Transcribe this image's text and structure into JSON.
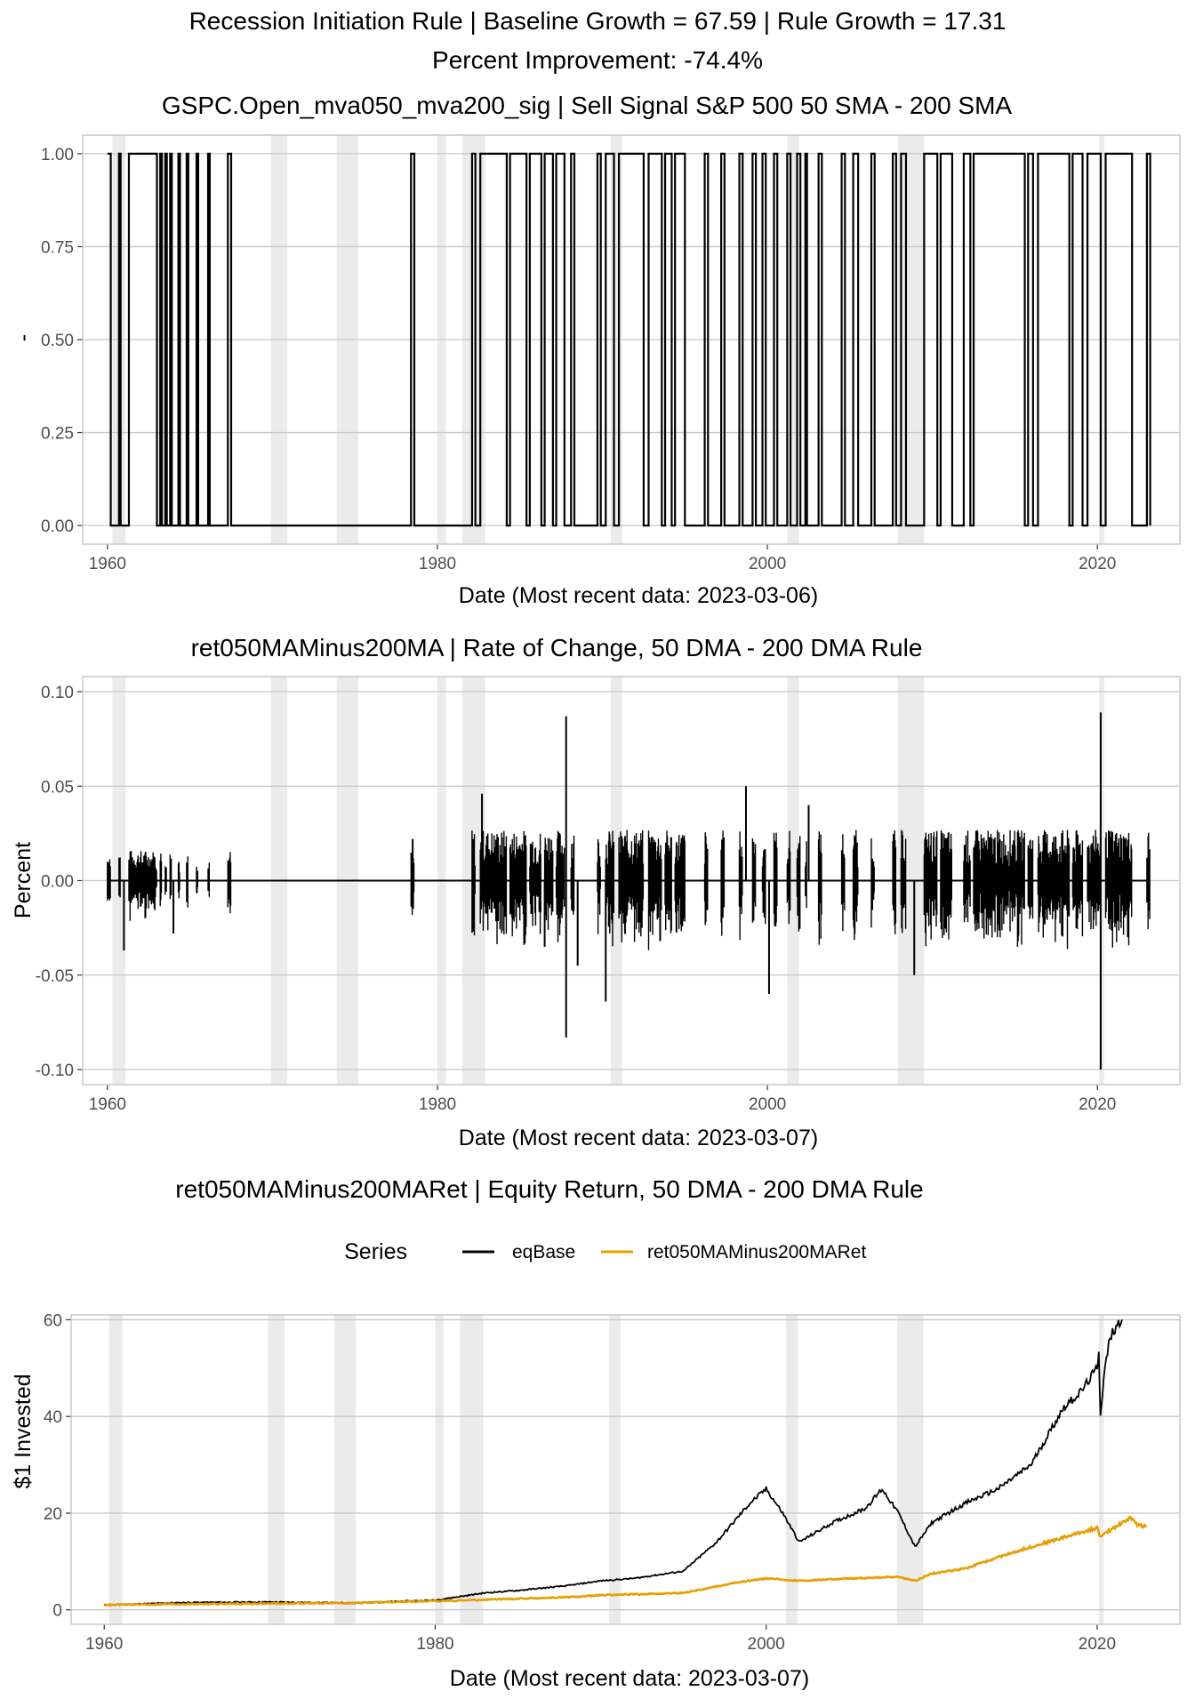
{
  "header": {
    "line1": "Recession Initiation Rule | Baseline Growth = 67.59 | Rule Growth = 17.31",
    "line2": "Percent Improvement: -74.4%"
  },
  "colors": {
    "recession_shade": "#ebebeb",
    "grid": "#c8c8c8",
    "panel_border": "#c8c8c8",
    "line_black": "#000000",
    "line_orange": "#E69F00"
  },
  "recessions": [
    [
      1960.3,
      1961.1
    ],
    [
      1969.9,
      1970.9
    ],
    [
      1973.9,
      1975.2
    ],
    [
      1980.0,
      1980.5
    ],
    [
      1981.5,
      1982.9
    ],
    [
      1990.5,
      1991.2
    ],
    [
      2001.2,
      2001.9
    ],
    [
      2007.9,
      2009.5
    ],
    [
      2020.1,
      2020.4
    ]
  ],
  "chart_data": [
    {
      "type": "line",
      "title": "GSPC.Open_mva050_mva200_sig | Sell Signal S&P 500 50 SMA - 200 SMA",
      "xlabel": "Date (Most recent data: 2023-03-06)",
      "ylabel": "-",
      "xlim": [
        1958.5,
        2025.0
      ],
      "ylim": [
        -0.05,
        1.05
      ],
      "x_ticks": [
        1960,
        1980,
        2000,
        2020
      ],
      "x_tick_labels": [
        "1960",
        "1980",
        "2000",
        "2020"
      ],
      "y_ticks": [
        0,
        0.25,
        0.5,
        0.75,
        1.0
      ],
      "y_tick_labels": [
        "0.00",
        "0.25",
        "0.50",
        "0.75",
        "1.00"
      ],
      "series": [
        {
          "color": "#000000",
          "step_x": [
            1960.0,
            1960.2,
            1960.7,
            1960.8,
            1961.3,
            1963.0,
            1963.2,
            1963.3,
            1963.5,
            1963.6,
            1963.8,
            1963.9,
            1964.3,
            1964.4,
            1964.8,
            1964.9,
            1965.4,
            1965.5,
            1966.1,
            1966.2,
            1967.3,
            1967.5,
            1978.4,
            1978.6,
            1982.1,
            1982.3,
            1982.6,
            1984.2,
            1984.4,
            1985.4,
            1985.6,
            1986.3,
            1986.5,
            1987.0,
            1987.2,
            1987.7,
            1988.1,
            1988.3,
            1989.7,
            1989.9,
            1990.2,
            1990.7,
            1991.0,
            1992.5,
            1992.8,
            1993.6,
            1993.8,
            1994.2,
            1994.4,
            1995.0,
            1996.2,
            1996.4,
            1997.2,
            1997.4,
            1998.3,
            1998.5,
            1999.1,
            1999.3,
            1999.7,
            1999.9,
            2000.4,
            2000.6,
            2001.2,
            2001.4,
            2001.8,
            2002.0,
            2002.3,
            2002.4,
            2003.1,
            2003.3,
            2004.5,
            2004.7,
            2005.2,
            2005.5,
            2006.3,
            2006.5,
            2007.6,
            2007.8,
            2008.1,
            2008.4,
            2009.5,
            2010.3,
            2010.5,
            2011.2,
            2011.9,
            2012.3,
            2012.5,
            2015.6,
            2015.8,
            2016.1,
            2016.4,
            2018.3,
            2018.5,
            2019.1,
            2019.4,
            2020.2,
            2020.5,
            2022.1,
            2023.0,
            2023.2
          ],
          "step_y": [
            1,
            0,
            1,
            0,
            1,
            0,
            1,
            0,
            1,
            0,
            1,
            0,
            1,
            0,
            1,
            0,
            1,
            0,
            1,
            0,
            1,
            0,
            1,
            0,
            1,
            0,
            1,
            0,
            1,
            0,
            1,
            0,
            1,
            0,
            1,
            0,
            1,
            0,
            1,
            0,
            1,
            0,
            1,
            0,
            1,
            0,
            1,
            0,
            1,
            0,
            1,
            0,
            1,
            0,
            1,
            0,
            1,
            0,
            1,
            0,
            1,
            0,
            1,
            0,
            1,
            0,
            1,
            0,
            1,
            0,
            1,
            0,
            1,
            0,
            1,
            0,
            1,
            0,
            1,
            0,
            1,
            0,
            1,
            0,
            1,
            0,
            1,
            0,
            1,
            0,
            1,
            0,
            1,
            0,
            1,
            0,
            1,
            0,
            1,
            0
          ],
          "x_end": 2023.2
        }
      ]
    },
    {
      "type": "line",
      "title": "ret050MAMinus200MA | Rate of Change, 50 DMA - 200 DMA Rule",
      "xlabel": "Date (Most recent data: 2023-03-07)",
      "ylabel": "Percent",
      "xlim": [
        1958.5,
        2025.0
      ],
      "ylim": [
        -0.108,
        0.108
      ],
      "x_ticks": [
        1960,
        1980,
        2000,
        2020
      ],
      "x_tick_labels": [
        "1960",
        "1980",
        "2000",
        "2020"
      ],
      "y_ticks": [
        -0.1,
        -0.05,
        0,
        0.05,
        0.1
      ],
      "y_tick_labels": [
        "-0.10",
        "-0.05",
        "0.00",
        "0.05",
        "0.10"
      ],
      "series": [
        {
          "color": "#000000",
          "active_periods": [
            [
              1960.0,
              1960.2
            ],
            [
              1960.7,
              1960.8
            ],
            [
              1961.3,
              1963.0
            ],
            [
              1963.2,
              1963.3
            ],
            [
              1963.5,
              1963.6
            ],
            [
              1963.8,
              1963.9
            ],
            [
              1964.3,
              1964.4
            ],
            [
              1964.8,
              1964.9
            ],
            [
              1965.4,
              1965.5
            ],
            [
              1966.1,
              1966.2
            ],
            [
              1967.3,
              1967.5
            ],
            [
              1978.4,
              1978.6
            ],
            [
              1982.1,
              1982.3
            ],
            [
              1982.6,
              1984.2
            ],
            [
              1984.4,
              1985.4
            ],
            [
              1985.6,
              1986.3
            ],
            [
              1986.5,
              1987.0
            ],
            [
              1987.2,
              1987.7
            ],
            [
              1988.1,
              1988.3
            ],
            [
              1989.7,
              1989.9
            ],
            [
              1990.2,
              1990.7
            ],
            [
              1991.0,
              1992.5
            ],
            [
              1992.8,
              1993.6
            ],
            [
              1993.8,
              1994.2
            ],
            [
              1994.4,
              1995.0
            ],
            [
              1996.2,
              1996.4
            ],
            [
              1997.2,
              1997.4
            ],
            [
              1998.3,
              1998.5
            ],
            [
              1999.1,
              1999.3
            ],
            [
              1999.7,
              1999.9
            ],
            [
              2000.4,
              2000.6
            ],
            [
              2001.2,
              2001.4
            ],
            [
              2001.8,
              2002.0
            ],
            [
              2002.3,
              2002.4
            ],
            [
              2003.1,
              2003.3
            ],
            [
              2004.5,
              2004.7
            ],
            [
              2005.2,
              2005.5
            ],
            [
              2006.3,
              2006.5
            ],
            [
              2007.6,
              2007.8
            ],
            [
              2008.1,
              2008.4
            ],
            [
              2009.5,
              2010.3
            ],
            [
              2010.5,
              2011.2
            ],
            [
              2011.9,
              2012.3
            ],
            [
              2012.5,
              2015.6
            ],
            [
              2015.8,
              2016.1
            ],
            [
              2016.4,
              2018.3
            ],
            [
              2018.5,
              2019.1
            ],
            [
              2019.4,
              2020.2
            ],
            [
              2020.5,
              2022.1
            ],
            [
              2023.0,
              2023.2
            ]
          ],
          "spikes": [
            [
              1961.0,
              -0.037
            ],
            [
              1964.0,
              -0.028
            ],
            [
              1978.5,
              0.022
            ],
            [
              1982.7,
              0.046
            ],
            [
              1986.5,
              -0.035
            ],
            [
              1987.8,
              0.087
            ],
            [
              1987.8,
              -0.083
            ],
            [
              1988.5,
              -0.045
            ],
            [
              1990.2,
              -0.064
            ],
            [
              1993.5,
              -0.032
            ],
            [
              1998.7,
              0.05
            ],
            [
              2000.1,
              -0.06
            ],
            [
              2002.5,
              0.04
            ],
            [
              2008.9,
              -0.05
            ],
            [
              2020.2,
              0.089
            ],
            [
              2020.2,
              -0.1
            ]
          ]
        }
      ]
    },
    {
      "type": "line",
      "title": "ret050MAMinus200MARet  |  Equity Return, 50 DMA - 200 DMA Rule",
      "xlabel": "Date (Most recent data: 2023-03-07)",
      "ylabel": "$1 Invested",
      "legend_title": "Series",
      "legend_position": "top",
      "xlim": [
        1958.0,
        2025.0
      ],
      "ylim": [
        -3,
        61
      ],
      "x_ticks": [
        1960,
        1980,
        2000,
        2020
      ],
      "x_tick_labels": [
        "1960",
        "1980",
        "2000",
        "2020"
      ],
      "y_ticks": [
        0,
        20,
        40,
        60
      ],
      "y_tick_labels": [
        "0",
        "20",
        "40",
        "60"
      ],
      "series": [
        {
          "name": "eqBase",
          "color": "#000000",
          "x": [
            1960,
            1965,
            1970,
            1975,
            1980,
            1983,
            1985,
            1988,
            1990,
            1992,
            1995,
            1997,
            1998,
            1999,
            2000,
            2001,
            2002,
            2003,
            2004,
            2006,
            2007,
            2008,
            2009,
            2010,
            2012,
            2014,
            2016,
            2018,
            2019,
            2020,
            2020.1,
            2020.2,
            2020.4,
            2020.7,
            2021.0,
            2021.5
          ],
          "y": [
            1,
            1.5,
            1.6,
            1.4,
            2,
            3.5,
            4,
            5,
            6,
            6.5,
            8,
            14,
            18,
            22,
            25,
            20,
            14,
            16,
            18,
            21,
            25,
            20,
            13,
            18,
            22,
            25,
            30,
            42,
            45,
            50,
            54,
            40,
            48,
            55,
            58,
            60
          ]
        },
        {
          "name": "ret050MAMinus200MARet",
          "color": "#E69F00",
          "x": [
            1960,
            1965,
            1970,
            1975,
            1980,
            1985,
            1988,
            1990,
            1995,
            1998,
            2000,
            2002,
            2005,
            2008,
            2009,
            2010,
            2012,
            2015,
            2018,
            2020,
            2020.2,
            2021,
            2022,
            2022.5,
            2023
          ],
          "y": [
            1,
            1.2,
            1.3,
            1.4,
            1.8,
            2.3,
            2.6,
            3,
            3.5,
            5.5,
            6.5,
            6,
            6.5,
            6.8,
            6,
            7.5,
            8.5,
            12,
            15,
            17,
            15,
            17,
            19,
            17.5,
            17.3
          ]
        }
      ]
    }
  ]
}
